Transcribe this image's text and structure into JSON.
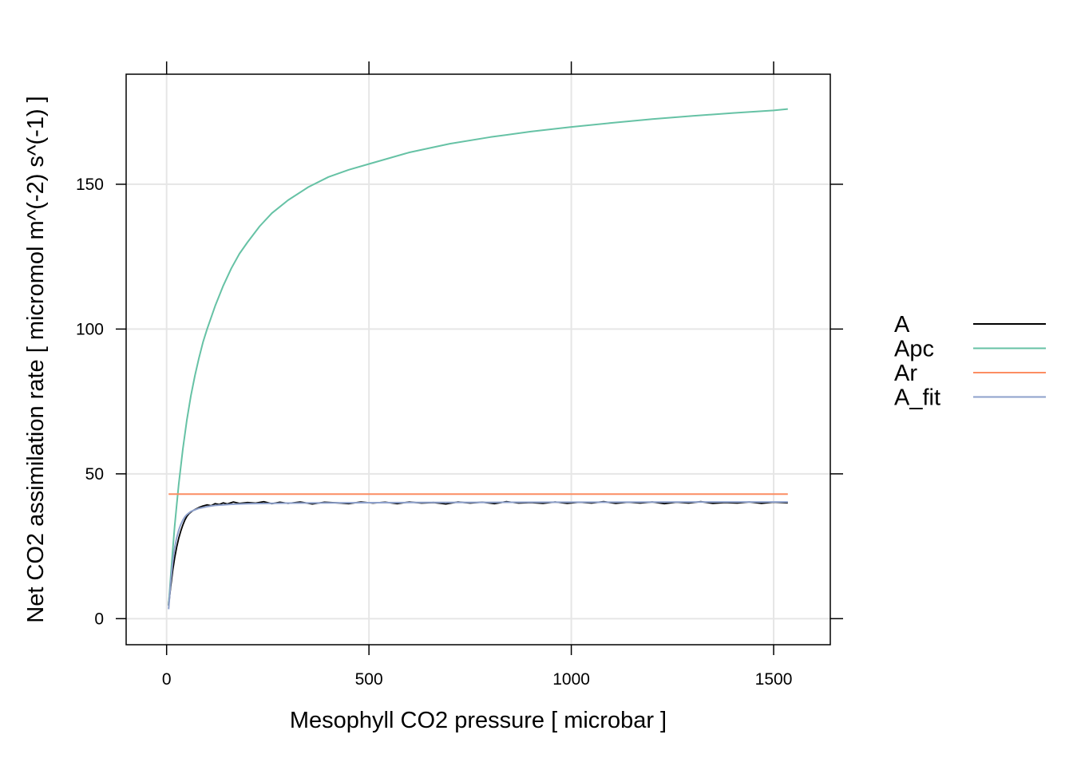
{
  "chart_data": {
    "type": "line",
    "xlabel": "Mesophyll CO2 pressure [ microbar ]",
    "ylabel": "Net CO2 assimilation rate [ micromol m^(-2) s^(-1) ]",
    "xlim": [
      -100,
      1640
    ],
    "ylim": [
      -9,
      188
    ],
    "xticks": [
      0,
      500,
      1000,
      1500
    ],
    "yticks": [
      0,
      50,
      100,
      150
    ],
    "grid": true,
    "legend_position": "right",
    "series": [
      {
        "name": "A",
        "color": "#000000",
        "x": [
          5,
          10,
          15,
          20,
          25,
          30,
          35,
          40,
          45,
          50,
          55,
          60,
          65,
          70,
          80,
          90,
          100,
          110,
          120,
          130,
          140,
          150,
          165,
          180,
          200,
          220,
          240,
          260,
          280,
          300,
          330,
          360,
          390,
          420,
          450,
          480,
          510,
          540,
          570,
          600,
          630,
          660,
          690,
          720,
          750,
          780,
          810,
          840,
          870,
          900,
          930,
          960,
          990,
          1020,
          1050,
          1080,
          1110,
          1140,
          1170,
          1200,
          1230,
          1260,
          1290,
          1320,
          1350,
          1380,
          1410,
          1440,
          1470,
          1500,
          1535
        ],
        "y": [
          4.5,
          11.0,
          16.5,
          21.0,
          24.8,
          27.8,
          30.2,
          32.3,
          34.0,
          35.3,
          36.2,
          36.8,
          37.3,
          37.7,
          38.4,
          38.9,
          39.3,
          39.0,
          39.7,
          39.4,
          40.0,
          39.6,
          40.3,
          39.8,
          40.1,
          39.9,
          40.4,
          39.7,
          40.2,
          39.8,
          40.3,
          39.6,
          40.2,
          40.0,
          39.7,
          40.3,
          39.9,
          40.2,
          39.7,
          40.3,
          39.9,
          40.1,
          39.6,
          40.3,
          39.9,
          40.2,
          39.7,
          40.4,
          39.9,
          40.1,
          39.8,
          40.3,
          39.8,
          40.2,
          39.9,
          40.4,
          39.8,
          40.2,
          39.9,
          40.3,
          39.7,
          40.2,
          39.9,
          40.4,
          39.8,
          40.1,
          39.9,
          40.3,
          39.8,
          40.2,
          40.0
        ]
      },
      {
        "name": "Apc",
        "color": "#66c2a5",
        "x": [
          5,
          10,
          15,
          20,
          25,
          30,
          40,
          50,
          60,
          70,
          80,
          90,
          100,
          120,
          140,
          160,
          180,
          200,
          230,
          260,
          300,
          350,
          400,
          450,
          500,
          600,
          700,
          800,
          900,
          1000,
          1100,
          1200,
          1300,
          1400,
          1500,
          1535
        ],
        "y": [
          4.6,
          14.5,
          23.5,
          32.0,
          39.5,
          46.5,
          58.5,
          68.5,
          77.0,
          84.0,
          90.0,
          95.5,
          100.0,
          108.0,
          115.0,
          121.0,
          126.0,
          130.0,
          135.5,
          140.0,
          144.5,
          149.0,
          152.5,
          155.0,
          157.0,
          161.0,
          164.0,
          166.3,
          168.2,
          169.8,
          171.2,
          172.5,
          173.6,
          174.6,
          175.5,
          176.0
        ]
      },
      {
        "name": "Ar",
        "color": "#fc8d62",
        "x": [
          5,
          1535
        ],
        "y": [
          43.0,
          43.0
        ]
      },
      {
        "name": "A_fit",
        "color": "#8da0cb",
        "x": [
          5,
          10,
          15,
          20,
          25,
          30,
          35,
          40,
          45,
          50,
          55,
          60,
          70,
          80,
          90,
          100,
          120,
          140,
          160,
          180,
          200,
          250,
          300,
          400,
          500,
          600,
          800,
          1000,
          1200,
          1400,
          1535
        ],
        "y": [
          3.3,
          12.5,
          19.5,
          24.5,
          28.0,
          30.6,
          32.5,
          34.0,
          35.1,
          35.9,
          36.5,
          37.0,
          37.6,
          38.1,
          38.4,
          38.7,
          39.1,
          39.3,
          39.5,
          39.6,
          39.7,
          39.8,
          39.9,
          40.0,
          40.05,
          40.1,
          40.15,
          40.2,
          40.25,
          40.3,
          40.3
        ]
      }
    ]
  }
}
